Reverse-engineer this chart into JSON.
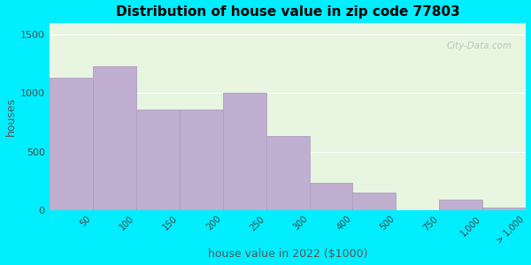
{
  "title": "Distribution of house value in zip code 77803",
  "xlabel": "house value in 2022 ($1000)",
  "ylabel": "houses",
  "bar_values": [
    1130,
    1230,
    860,
    860,
    1000,
    630,
    230,
    150,
    0,
    90,
    20
  ],
  "x_tick_labels": [
    "50",
    "100",
    "150",
    "200",
    "250",
    "300",
    "400",
    "500",
    "750",
    "1,000",
    "> 1,000"
  ],
  "ylim": [
    0,
    1600
  ],
  "yticks": [
    0,
    500,
    1000,
    1500
  ],
  "bar_color": "#c0afd0",
  "bar_edge_color": "#b09fc0",
  "bg_outer": "#00eeff",
  "bg_plot": "#e8f5e0",
  "title_fontsize": 11,
  "axis_label_fontsize": 9,
  "watermark": "City-Data.com"
}
